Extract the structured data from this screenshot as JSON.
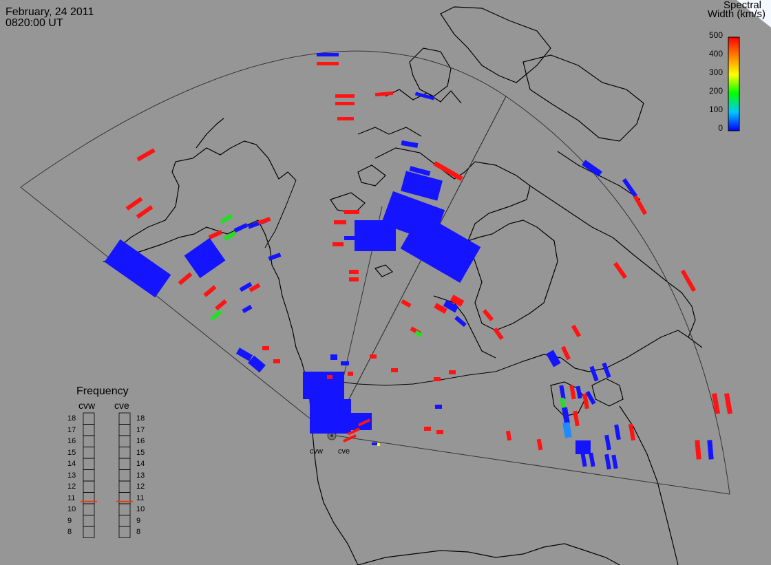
{
  "header": {
    "date": "February, 24 2011",
    "time": "0820:00 UT"
  },
  "colorbar": {
    "title_line1": "Spectral",
    "title_line2": "Width (km/s)",
    "ticks": [
      "500",
      "400",
      "300",
      "200",
      "100",
      "0"
    ]
  },
  "frequency_panel": {
    "title": "Frequency",
    "columns": [
      {
        "name": "cvw",
        "selected_mhz": 10.7
      },
      {
        "name": "cve",
        "selected_mhz": 10.7
      }
    ],
    "scale": [
      "18",
      "17",
      "16",
      "15",
      "14",
      "13",
      "12",
      "11",
      "10",
      "9",
      "8"
    ]
  },
  "radars": [
    {
      "name": "cvw"
    },
    {
      "name": "cve"
    }
  ],
  "colors": {
    "background": "#969696",
    "low": "#1414ff",
    "high": "#ff1414",
    "green": "#20e020",
    "cyan": "#1e8cff",
    "coast": "#000000",
    "fov": "#333333"
  }
}
